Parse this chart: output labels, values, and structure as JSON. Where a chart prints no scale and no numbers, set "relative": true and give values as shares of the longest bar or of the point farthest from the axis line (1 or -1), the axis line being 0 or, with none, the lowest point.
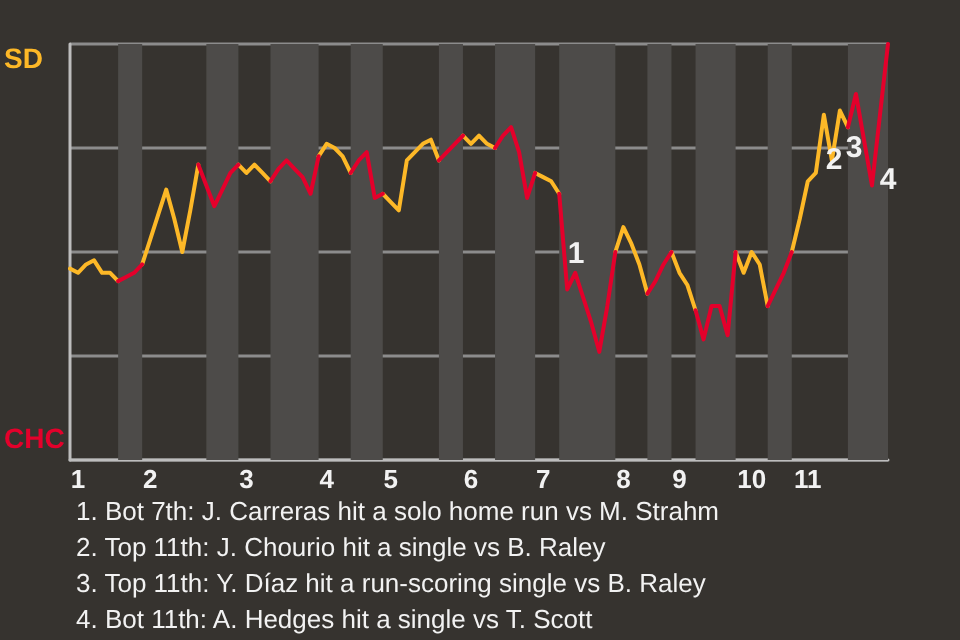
{
  "chart_data": {
    "type": "line",
    "relative": true,
    "categories": [
      null,
      "1",
      null,
      null,
      null,
      null,
      null,
      null,
      null,
      null,
      "2",
      null,
      null,
      null,
      null,
      null,
      null,
      null,
      null,
      null,
      null,
      null,
      "3",
      null,
      null,
      null,
      null,
      null,
      null,
      null,
      null,
      null,
      "4",
      null,
      null,
      null,
      null,
      null,
      null,
      null,
      "5",
      null,
      null,
      null,
      null,
      null,
      null,
      null,
      null,
      null,
      "6",
      null,
      null,
      null,
      null,
      null,
      null,
      null,
      null,
      "7",
      null,
      null,
      null,
      null,
      null,
      null,
      null,
      null,
      null,
      "8",
      null,
      null,
      null,
      null,
      null,
      null,
      "9",
      null,
      null,
      null,
      null,
      null,
      null,
      null,
      null,
      "10",
      null,
      null,
      null,
      null,
      null,
      null,
      "11",
      null,
      null,
      null,
      null,
      null,
      null,
      null,
      null,
      null,
      null
    ],
    "grid": "y",
    "marker": "none",
    "line_style": "solid",
    "series": [
      {
        "color": "#fdb827",
        "values": [
          0.46,
          0.45,
          0.47,
          0.48,
          0.45,
          0.45,
          0.43,
          null,
          null,
          0.47,
          0.53,
          0.59,
          0.65,
          0.58,
          0.5,
          0.6,
          0.71,
          null,
          null,
          null,
          null,
          0.71,
          0.69,
          0.71,
          0.69,
          0.67,
          null,
          null,
          null,
          null,
          null,
          0.73,
          0.76,
          0.75,
          0.73,
          0.69,
          null,
          null,
          null,
          0.64,
          0.62,
          0.6,
          0.72,
          0.74,
          0.76,
          0.77,
          0.72,
          null,
          null,
          0.78,
          0.76,
          0.78,
          0.76,
          0.75,
          null,
          null,
          null,
          null,
          0.69,
          0.68,
          0.67,
          0.64,
          null,
          null,
          null,
          null,
          null,
          null,
          0.5,
          0.56,
          0.52,
          0.47,
          0.4,
          null,
          null,
          0.5,
          0.45,
          0.42,
          0.36,
          null,
          null,
          null,
          null,
          0.5,
          0.45,
          0.5,
          0.47,
          0.37,
          null,
          null,
          0.5,
          0.58,
          0.67,
          0.69,
          0.83,
          0.72,
          0.84,
          0.8,
          null,
          null,
          null,
          null,
          null
        ]
      },
      {
        "color": "#e4002b",
        "values": [
          null,
          null,
          null,
          null,
          null,
          null,
          0.43,
          0.44,
          0.45,
          0.47,
          null,
          null,
          null,
          null,
          null,
          null,
          0.71,
          0.66,
          0.61,
          0.65,
          0.69,
          0.71,
          null,
          null,
          null,
          0.67,
          0.7,
          0.72,
          0.7,
          0.68,
          0.64,
          0.73,
          null,
          null,
          null,
          0.69,
          0.72,
          0.74,
          0.63,
          0.64,
          null,
          null,
          null,
          null,
          null,
          null,
          0.72,
          0.74,
          0.76,
          0.78,
          null,
          null,
          null,
          0.75,
          0.78,
          0.8,
          0.74,
          0.63,
          0.69,
          null,
          null,
          0.64,
          0.41,
          0.45,
          0.39,
          0.33,
          0.26,
          0.37,
          0.5,
          null,
          null,
          null,
          0.4,
          0.43,
          0.47,
          0.5,
          null,
          null,
          0.36,
          0.29,
          0.37,
          0.37,
          0.3,
          0.5,
          null,
          null,
          null,
          0.37,
          0.41,
          0.45,
          0.5,
          null,
          null,
          null,
          null,
          null,
          null,
          0.8,
          0.88,
          0.77,
          0.66,
          0.83,
          1
        ]
      }
    ],
    "annotations": [
      "SD",
      "CHC",
      "1",
      "2",
      "3",
      "4",
      "1. Bot 7th: J. Carreras hit a solo home run vs M. Strahm",
      "2. Top 11th: J. Chourio hit a single vs B. Raley",
      "3. Top 11th: Y. Díaz hit a run-scoring single vs B. Raley",
      "4. Bot 11th: A. Hedges hit a single vs T. Scott"
    ]
  }
}
